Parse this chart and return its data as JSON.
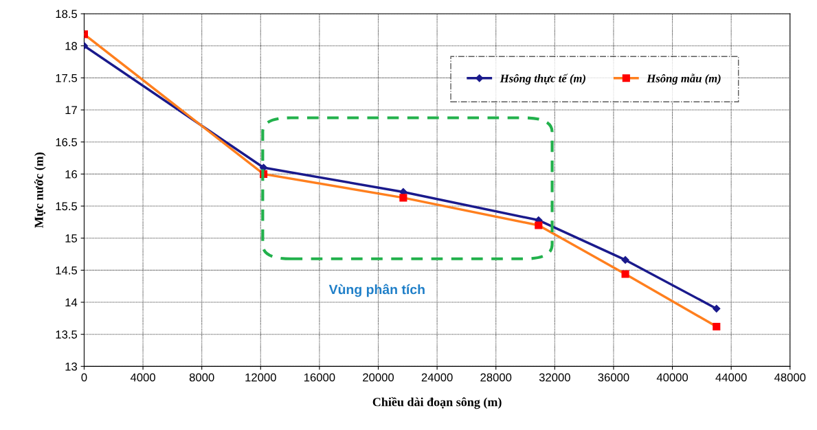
{
  "chart_data": {
    "type": "line",
    "xlabel": "Chiều dài đoạn sông (m)",
    "ylabel": "Mực nước (m)",
    "x": [
      0,
      12200,
      21700,
      30900,
      36800,
      43000
    ],
    "series": [
      {
        "name": "Hsông thực tế (m)",
        "color": "#1a1a8c",
        "marker": "diamond",
        "values": [
          18.0,
          16.1,
          15.72,
          15.28,
          14.66,
          13.9
        ]
      },
      {
        "name": "Hsông mẫu (m)",
        "color": "#ff7f1e",
        "marker": "square",
        "values": [
          18.18,
          16.0,
          15.63,
          15.2,
          14.44,
          13.62
        ]
      }
    ],
    "annotations": [
      "Vùng phân tích"
    ],
    "xlim": [
      0,
      48000
    ],
    "xticks": [
      0,
      4000,
      8000,
      12000,
      16000,
      20000,
      24000,
      28000,
      32000,
      36000,
      40000,
      44000,
      48000
    ],
    "ylim": [
      13,
      18.5
    ],
    "yticks": [
      13,
      13.5,
      14,
      14.5,
      15,
      15.5,
      16,
      16.5,
      17,
      17.5,
      18,
      18.5
    ],
    "grid": true,
    "legend": "top right",
    "line_style": "solid"
  }
}
